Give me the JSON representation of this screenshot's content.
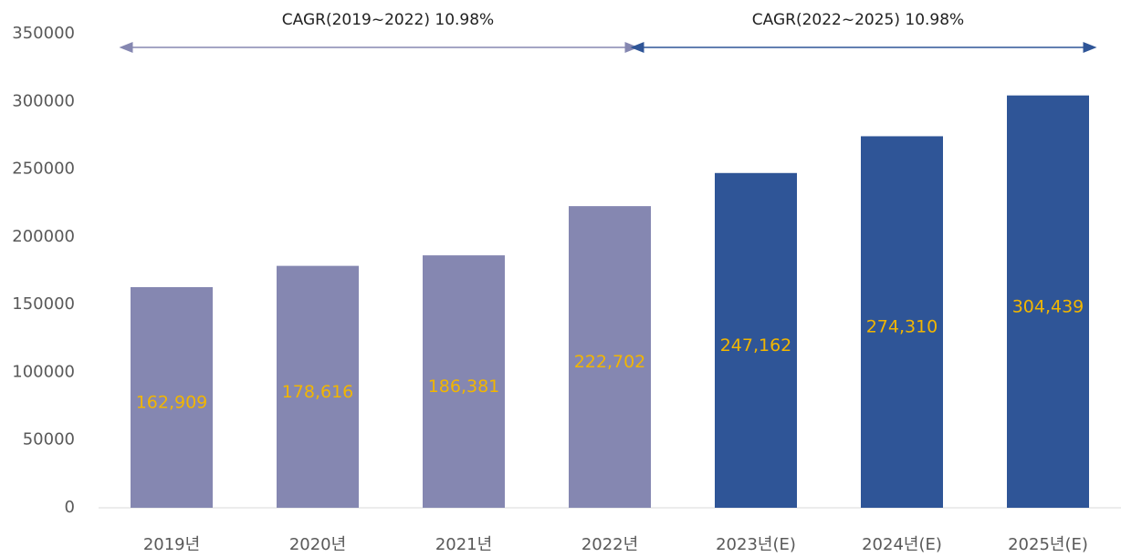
{
  "chart_data": {
    "type": "bar",
    "categories": [
      "2019년",
      "2020년",
      "2021년",
      "2022년",
      "2023년(E)",
      "2024년(E)",
      "2025년(E)"
    ],
    "values": [
      162909,
      178616,
      186381,
      222702,
      247162,
      274310,
      304439
    ],
    "value_labels": [
      "162,909",
      "178,616",
      "186,381",
      "222,702",
      "247,162",
      "274,310",
      "304,439"
    ],
    "colors": [
      "#8587b1",
      "#8587b1",
      "#8587b1",
      "#8587b1",
      "#2f5597",
      "#2f5597",
      "#2f5597"
    ],
    "label_color": "#f2b600",
    "ylim": [
      0,
      350000
    ],
    "yticks": [
      0,
      50000,
      100000,
      150000,
      200000,
      250000,
      300000,
      350000
    ],
    "grid": false,
    "annotations": [
      "CAGR(2019~2022) 10.98%",
      "CAGR(2022~2025) 10.98%"
    ]
  }
}
